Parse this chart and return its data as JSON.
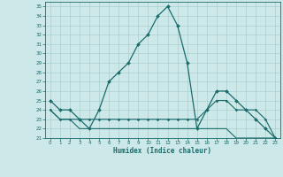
{
  "title": "",
  "xlabel": "Humidex (Indice chaleur)",
  "background_color": "#cce8e8",
  "grid_color": "#aacfcf",
  "line_color": "#1a6b6b",
  "xlim": [
    -0.5,
    23.5
  ],
  "ylim": [
    21,
    35.5
  ],
  "yticks": [
    21,
    22,
    23,
    24,
    25,
    26,
    27,
    28,
    29,
    30,
    31,
    32,
    33,
    34,
    35
  ],
  "xticks": [
    0,
    1,
    2,
    3,
    4,
    5,
    6,
    7,
    8,
    9,
    10,
    11,
    12,
    13,
    14,
    15,
    16,
    17,
    18,
    19,
    20,
    21,
    22,
    23
  ],
  "line1_x": [
    0,
    1,
    2,
    3,
    4,
    5,
    6,
    7,
    8,
    9,
    10,
    11,
    12,
    13,
    14,
    15,
    16,
    17,
    18,
    19,
    20,
    21,
    22,
    23
  ],
  "line1_y": [
    25,
    24,
    24,
    23,
    22,
    24,
    27,
    28,
    29,
    31,
    32,
    34,
    35,
    33,
    29,
    22,
    24,
    26,
    26,
    25,
    24,
    23,
    22,
    21
  ],
  "line2_x": [
    0,
    1,
    2,
    3,
    4,
    5,
    6,
    7,
    8,
    9,
    10,
    11,
    12,
    13,
    14,
    15,
    16,
    17,
    18,
    19,
    20,
    21,
    22,
    23
  ],
  "line2_y": [
    24,
    23,
    23,
    23,
    23,
    23,
    23,
    23,
    23,
    23,
    23,
    23,
    23,
    23,
    23,
    23,
    24,
    25,
    25,
    24,
    24,
    24,
    23,
    21
  ],
  "line3_x": [
    0,
    1,
    2,
    3,
    4,
    5,
    6,
    7,
    8,
    9,
    10,
    11,
    12,
    13,
    14,
    15,
    16,
    17,
    18,
    19,
    20,
    21,
    22,
    23
  ],
  "line3_y": [
    24,
    23,
    23,
    22,
    22,
    22,
    22,
    22,
    22,
    22,
    22,
    22,
    22,
    22,
    22,
    22,
    22,
    22,
    22,
    21,
    21,
    21,
    21,
    21
  ]
}
